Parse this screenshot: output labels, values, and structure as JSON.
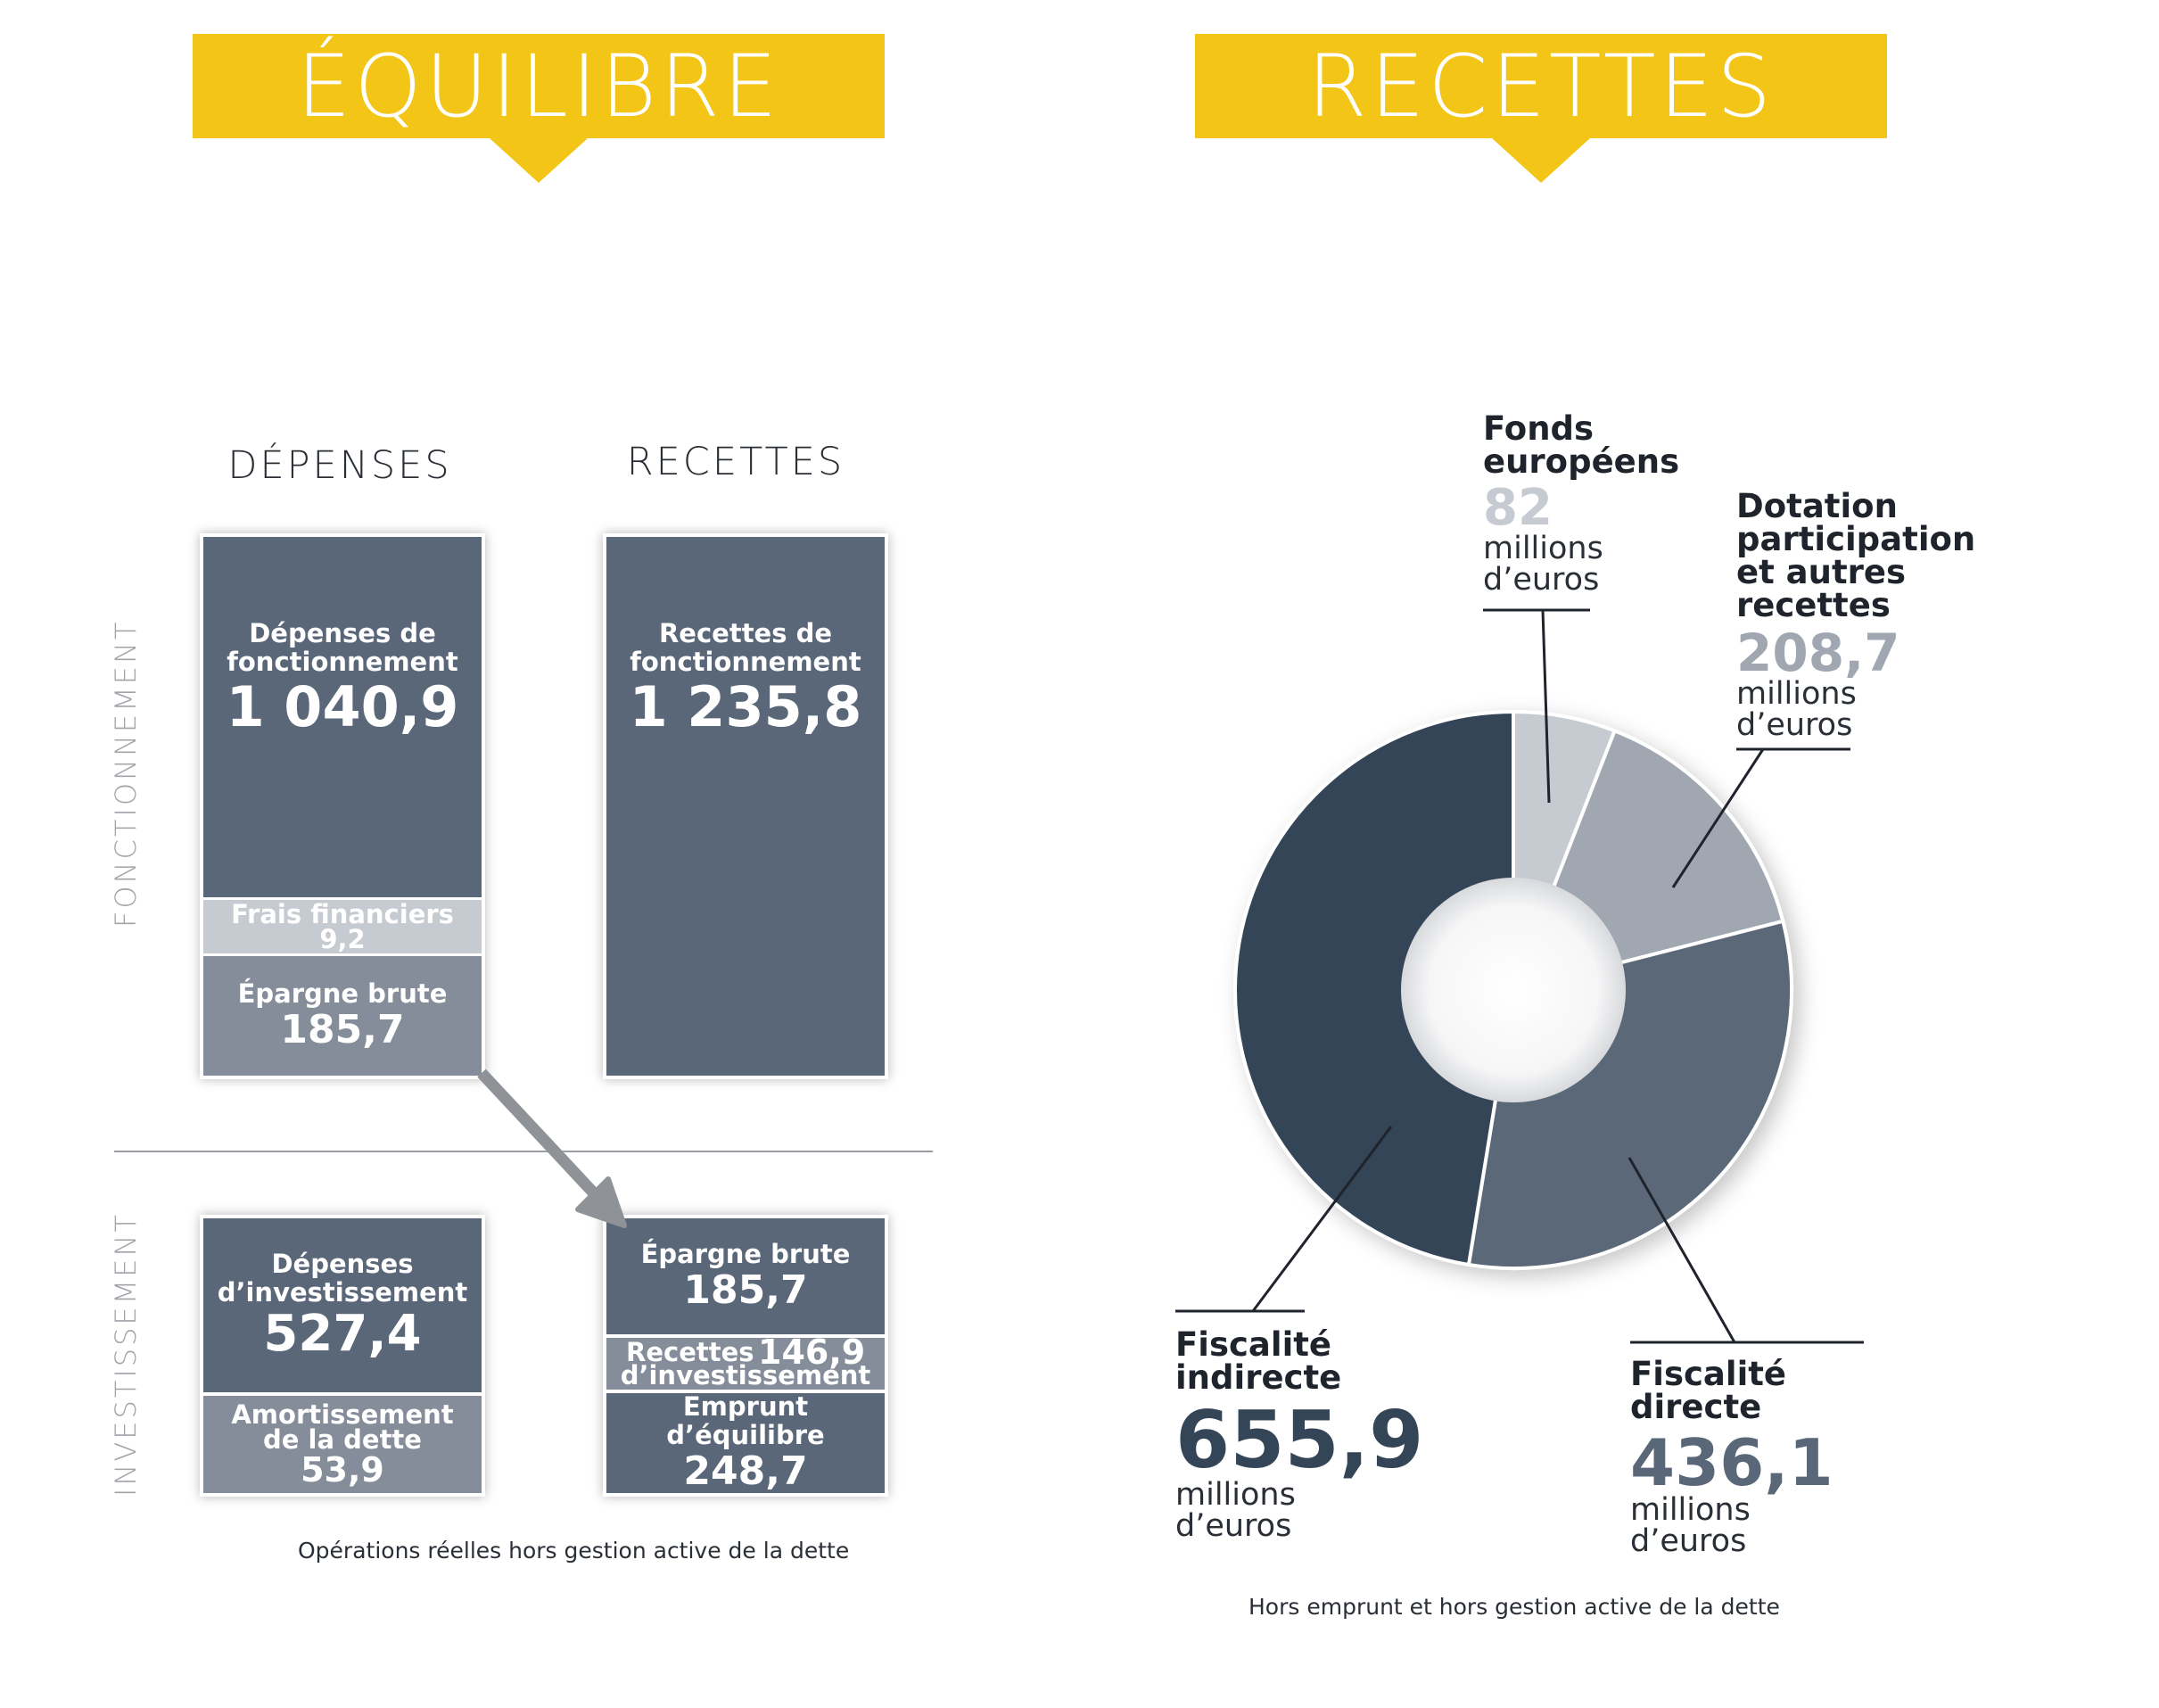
{
  "headers": {
    "left": "ÉQUILIBRE",
    "right": "RECETTES"
  },
  "equilibre": {
    "col_depenses": "DÉPENSES",
    "col_recettes": "RECETTES",
    "side_fonctionnement": "FONCTIONNEMENT",
    "side_investissement": "INVESTISSEMENT",
    "fonctionnement": {
      "depenses": {
        "main": {
          "label_l1": "Dépenses de",
          "label_l2": "fonctionnement",
          "value": "1 040,9"
        },
        "frais": {
          "label": "Frais financiers",
          "value": "9,2"
        },
        "epargne": {
          "label": "Épargne brute",
          "value": "185,7"
        }
      },
      "recettes": {
        "label_l1": "Recettes de",
        "label_l2": "fonctionnement",
        "value": "1 235,8"
      }
    },
    "investissement": {
      "depenses": {
        "main": {
          "label_l1": "Dépenses",
          "label_l2": "d’investissement",
          "value": "527,4"
        },
        "amort": {
          "label_l1": "Amortissement",
          "label_l2": "de la dette",
          "value": "53,9"
        }
      },
      "recettes": {
        "epargne": {
          "label": "Épargne brute",
          "value": "185,7"
        },
        "recettes_inv": {
          "label_l1": "Recettes",
          "label_l2": "d’investissement",
          "value": "146,9"
        },
        "emprunt": {
          "label": "Emprunt d’équilibre",
          "value": "248,7"
        }
      }
    },
    "note": "Opérations réelles hors gestion active de la dette"
  },
  "recettes_donut": {
    "unit_l1": "millions",
    "unit_l2": "d’euros",
    "note": "Hors emprunt et hors gestion active de la dette",
    "labels": {
      "fonds_l1": "Fonds",
      "fonds_l2": "européens",
      "fonds_value": "82",
      "dotation_l1": "Dotation",
      "dotation_l2": "participation",
      "dotation_l3": "et autres",
      "dotation_l4": "recettes",
      "dotation_value": "208,7",
      "indirecte_l1": "Fiscalité",
      "indirecte_l2": "indirecte",
      "indirecte_value": "655,9",
      "directe_l1": "Fiscalité",
      "directe_l2": "directe",
      "directe_value": "436,1"
    },
    "colors": {
      "fonds": "#c6cad1",
      "dotation": "#a0a7b1",
      "directe": "#5a6778",
      "indirecte": "#354558"
    }
  },
  "chart_data": [
    {
      "type": "table",
      "title": "ÉQUILIBRE",
      "columns": [
        "DÉPENSES",
        "RECETTES"
      ],
      "sections": [
        {
          "name": "FONCTIONNEMENT",
          "depenses": [
            {
              "label": "Dépenses de fonctionnement",
              "value": 1040.9
            },
            {
              "label": "Frais financiers",
              "value": 9.2
            },
            {
              "label": "Épargne brute",
              "value": 185.7
            }
          ],
          "recettes": [
            {
              "label": "Recettes de fonctionnement",
              "value": 1235.8
            }
          ]
        },
        {
          "name": "INVESTISSEMENT",
          "depenses": [
            {
              "label": "Dépenses d’investissement",
              "value": 527.4
            },
            {
              "label": "Amortissement de la dette",
              "value": 53.9
            }
          ],
          "recettes": [
            {
              "label": "Épargne brute",
              "value": 185.7
            },
            {
              "label": "Recettes d’investissement",
              "value": 146.9
            },
            {
              "label": "Emprunt d’équilibre",
              "value": 248.7
            }
          ]
        }
      ]
    },
    {
      "type": "pie",
      "title": "RECETTES",
      "categories": [
        "Fonds européens",
        "Dotation participation et autres recettes",
        "Fiscalité directe",
        "Fiscalité indirecte"
      ],
      "values": [
        82,
        208.7,
        436.1,
        655.9
      ],
      "unit": "millions d’euros",
      "donut": true
    }
  ]
}
